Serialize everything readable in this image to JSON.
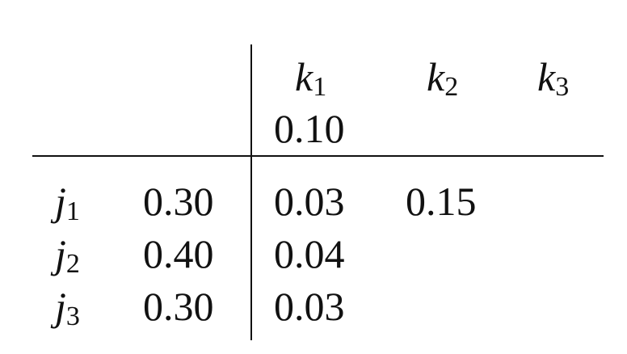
{
  "columns": [
    {
      "var": "k",
      "sub": "1",
      "marginal": "0.10"
    },
    {
      "var": "k",
      "sub": "2",
      "marginal": ""
    },
    {
      "var": "k",
      "sub": "3",
      "marginal": ""
    }
  ],
  "rows": [
    {
      "var": "j",
      "sub": "1",
      "marginal": "0.30",
      "cells": [
        "0.03",
        "0.15",
        ""
      ]
    },
    {
      "var": "j",
      "sub": "2",
      "marginal": "0.40",
      "cells": [
        "0.04",
        "",
        ""
      ]
    },
    {
      "var": "j",
      "sub": "3",
      "marginal": "0.30",
      "cells": [
        "0.03",
        "",
        ""
      ]
    }
  ]
}
